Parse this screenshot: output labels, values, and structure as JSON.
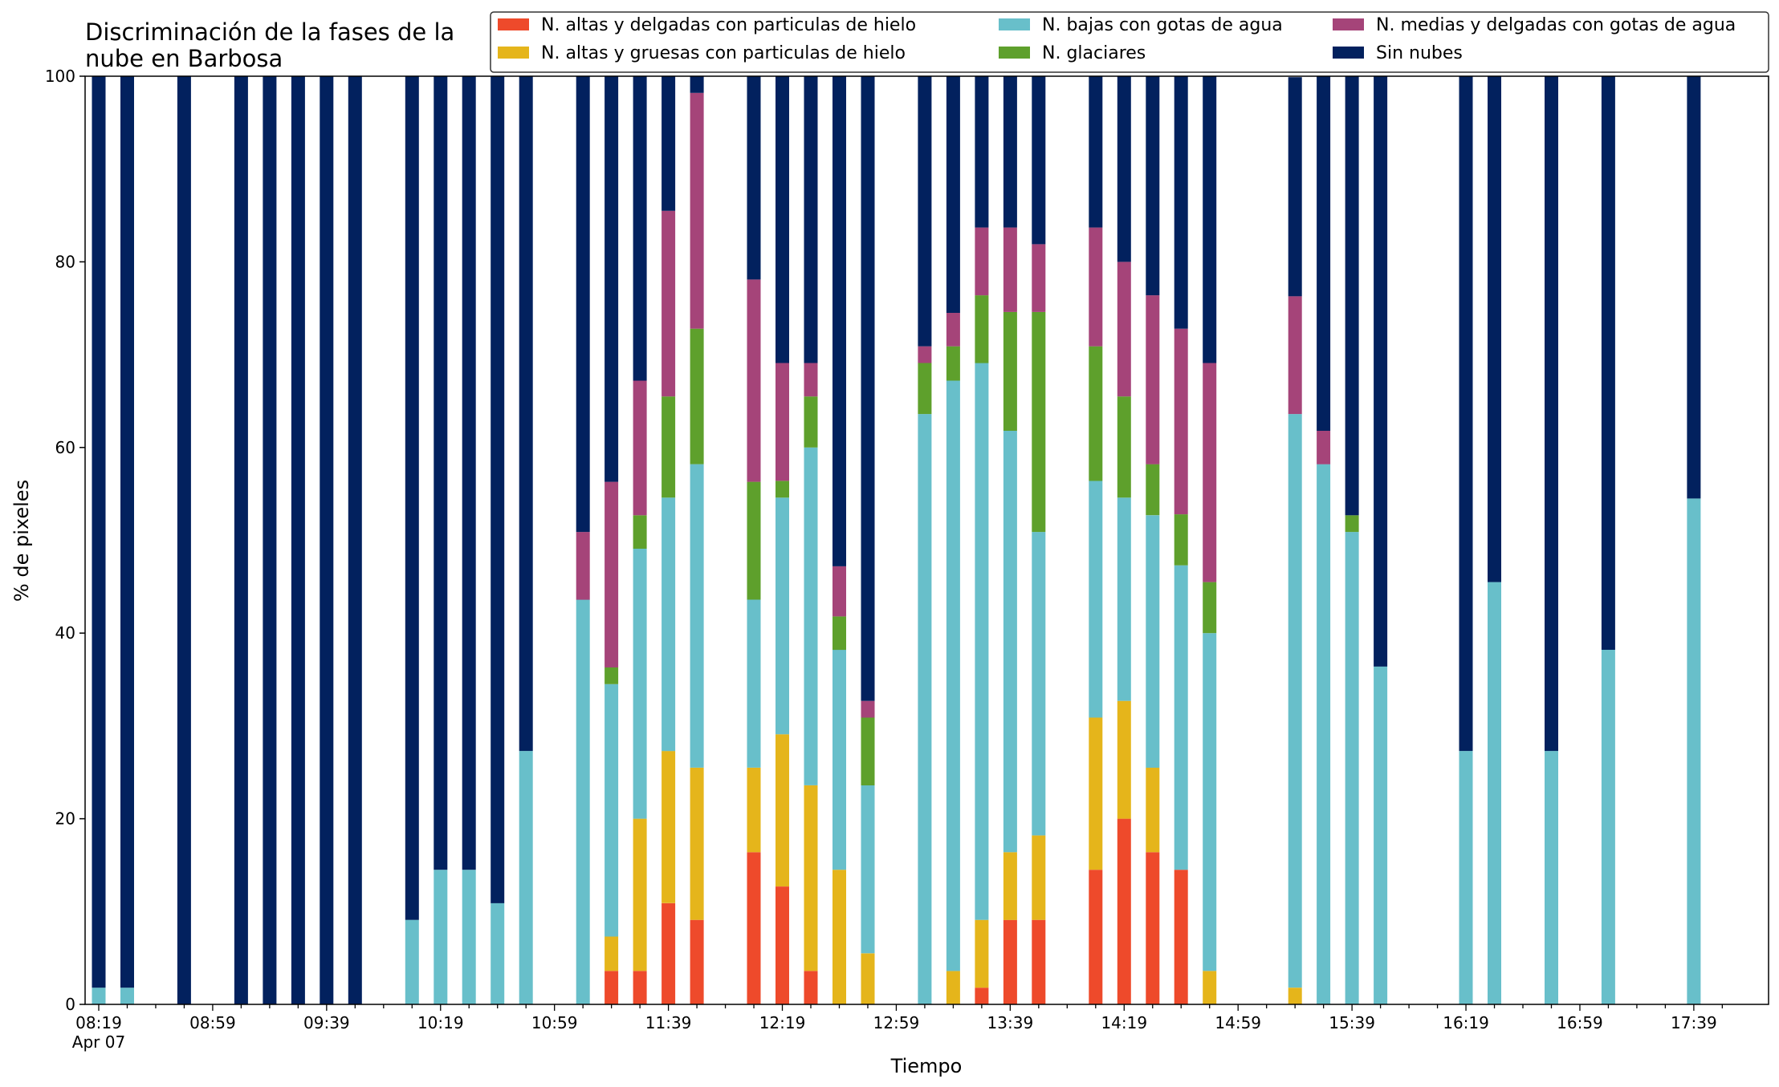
{
  "chart_data": {
    "type": "bar",
    "stacked": true,
    "title": [
      "Discriminación de la fases de la",
      "nube en Barbosa"
    ],
    "xlabel": "Tiempo",
    "ylabel": "% de pixeles",
    "ylim": [
      0,
      100
    ],
    "yticks": [
      "0",
      "20",
      "40",
      "60",
      "80",
      "100"
    ],
    "xtick_labels": [
      "08:19",
      "08:59",
      "09:39",
      "10:19",
      "10:59",
      "11:39",
      "12:19",
      "12:59",
      "13:39",
      "14:19",
      "14:59",
      "15:39",
      "16:19",
      "16:59",
      "17:39"
    ],
    "xtick_sublabel": "Apr 07",
    "x_start": "08:19",
    "x_step_minutes": 10,
    "grid": false,
    "legend_position": "top-right",
    "times": [
      "08:19",
      "08:29",
      "08:39",
      "08:49",
      "08:59",
      "09:09",
      "09:19",
      "09:29",
      "09:39",
      "09:49",
      "09:59",
      "10:09",
      "10:19",
      "10:29",
      "10:39",
      "10:49",
      "10:59",
      "11:09",
      "11:19",
      "11:29",
      "11:39",
      "11:49",
      "11:59",
      "12:09",
      "12:19",
      "12:29",
      "12:39",
      "12:49",
      "12:59",
      "13:09",
      "13:19",
      "13:29",
      "13:39",
      "13:49",
      "13:59",
      "14:09",
      "14:19",
      "14:29",
      "14:39",
      "14:49",
      "14:59",
      "15:09",
      "15:19",
      "15:29",
      "15:39",
      "15:49",
      "15:59",
      "16:09",
      "16:19",
      "16:29",
      "16:39",
      "16:49",
      "16:59",
      "17:09",
      "17:19",
      "17:29",
      "17:39",
      "17:49"
    ],
    "series": [
      {
        "name": "N. altas y delgadas con particulas de hielo",
        "color": "#ee4a2b",
        "values": [
          0,
          0,
          0,
          0,
          0,
          0,
          0,
          0,
          0,
          0,
          0,
          0,
          0,
          0,
          0,
          0,
          0,
          0,
          3.6,
          3.6,
          10.9,
          9.1,
          0,
          16.4,
          12.7,
          3.6,
          0,
          0,
          0,
          0,
          0,
          1.8,
          9.1,
          9.1,
          0,
          14.5,
          20.0,
          16.4,
          14.5,
          0,
          0,
          0,
          0,
          0,
          0,
          0,
          0,
          0,
          0,
          0,
          0,
          0,
          0,
          0,
          0,
          0,
          0,
          0
        ]
      },
      {
        "name": "N. altas y gruesas con particulas de hielo",
        "color": "#e5b51b",
        "values": [
          0,
          0,
          0,
          0,
          0,
          0,
          0,
          0,
          0,
          0,
          0,
          0,
          0,
          0,
          0,
          0,
          0,
          0,
          3.7,
          16.4,
          16.4,
          16.4,
          0,
          9.1,
          16.4,
          20.0,
          14.5,
          5.5,
          0,
          0,
          3.6,
          7.3,
          7.3,
          9.1,
          0,
          16.4,
          12.7,
          9.1,
          0,
          3.6,
          0,
          0,
          1.8,
          0,
          0,
          0,
          0,
          0,
          0,
          0,
          0,
          0,
          0,
          0,
          0,
          0,
          0,
          0
        ]
      },
      {
        "name": "N. bajas con gotas de agua",
        "color": "#68bfca",
        "values": [
          1.8,
          1.8,
          0,
          0,
          0,
          0,
          0,
          0,
          0,
          0,
          0,
          9.1,
          14.5,
          14.5,
          10.9,
          27.3,
          0,
          43.6,
          27.2,
          29.1,
          27.3,
          32.7,
          0,
          18.1,
          25.5,
          36.4,
          23.7,
          18.1,
          0,
          63.6,
          63.6,
          60.0,
          45.4,
          32.7,
          0,
          25.5,
          21.9,
          27.2,
          32.8,
          36.4,
          0,
          0,
          61.8,
          58.2,
          50.9,
          36.4,
          0,
          0,
          27.3,
          45.5,
          0,
          27.3,
          0,
          38.2,
          0,
          0,
          54.5,
          0
        ]
      },
      {
        "name": "N. glaciares",
        "color": "#5ea02c",
        "values": [
          0,
          0,
          0,
          0,
          0,
          0,
          0,
          0,
          0,
          0,
          0,
          0,
          0,
          0,
          0,
          0,
          0,
          0,
          1.8,
          3.6,
          10.9,
          14.6,
          0,
          12.7,
          1.8,
          5.5,
          3.6,
          7.3,
          0,
          5.5,
          3.7,
          7.3,
          12.8,
          23.7,
          0,
          14.5,
          10.9,
          5.5,
          5.5,
          5.5,
          0,
          0,
          0,
          0,
          1.8,
          0,
          0,
          0,
          0,
          0,
          0,
          0,
          0,
          0,
          0,
          0,
          0,
          0
        ]
      },
      {
        "name": "N. medias y delgadas con gotas de agua",
        "color": "#a54479",
        "values": [
          0,
          0,
          0,
          0,
          0,
          0,
          0,
          0,
          0,
          0,
          0,
          0,
          0,
          0,
          0,
          0,
          0,
          7.3,
          20.0,
          14.5,
          20.0,
          25.4,
          0,
          21.8,
          12.7,
          3.6,
          5.4,
          1.8,
          0,
          1.8,
          3.6,
          7.3,
          9.1,
          7.3,
          0,
          12.8,
          14.5,
          18.2,
          20.0,
          23.6,
          0,
          0,
          12.7,
          3.6,
          0,
          0,
          0,
          0,
          0,
          0,
          0,
          0,
          0,
          0,
          0,
          0,
          0,
          0
        ]
      },
      {
        "name": "Sin nubes",
        "color": "#02215e",
        "values": [
          98.2,
          98.2,
          0,
          100,
          0,
          100,
          100,
          100,
          100,
          100,
          0,
          90.9,
          85.5,
          85.5,
          89.1,
          72.7,
          0,
          49.1,
          43.7,
          32.8,
          14.5,
          1.8,
          0,
          21.9,
          30.9,
          30.9,
          52.8,
          67.3,
          0,
          29.1,
          25.5,
          16.3,
          16.3,
          18.1,
          0,
          16.3,
          20.0,
          23.6,
          27.2,
          30.9,
          0,
          0,
          23.6,
          38.2,
          47.3,
          63.6,
          0,
          0,
          72.7,
          54.5,
          0,
          72.7,
          0,
          61.8,
          0,
          0,
          45.5,
          0
        ]
      }
    ]
  }
}
